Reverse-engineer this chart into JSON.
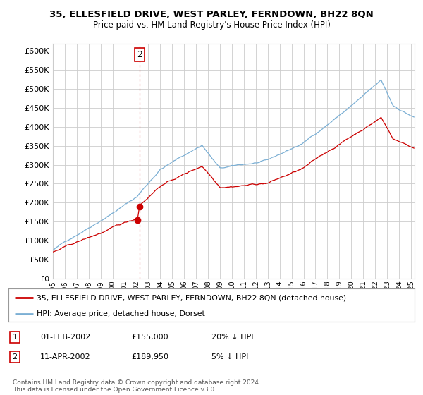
{
  "title": "35, ELLESFIELD DRIVE, WEST PARLEY, FERNDOWN, BH22 8QN",
  "subtitle": "Price paid vs. HM Land Registry's House Price Index (HPI)",
  "legend_line1": "35, ELLESFIELD DRIVE, WEST PARLEY, FERNDOWN, BH22 8QN (detached house)",
  "legend_line2": "HPI: Average price, detached house, Dorset",
  "footnote": "Contains HM Land Registry data © Crown copyright and database right 2024.\nThis data is licensed under the Open Government Licence v3.0.",
  "table_rows": [
    {
      "num": "1",
      "date": "01-FEB-2002",
      "price": "£155,000",
      "hpi": "20% ↓ HPI"
    },
    {
      "num": "2",
      "date": "11-APR-2002",
      "price": "£189,950",
      "hpi": "5% ↓ HPI"
    }
  ],
  "transaction1_x": 2002.083,
  "transaction1_y": 155000,
  "transaction2_x": 2002.28,
  "transaction2_y": 189950,
  "hpi_color": "#7bafd4",
  "price_color": "#cc0000",
  "vline_color": "#cc0000",
  "background_color": "#ffffff",
  "grid_color": "#cccccc",
  "ylim": [
    0,
    620000
  ],
  "xlim": [
    1995.0,
    2025.3
  ],
  "ytick_step": 50000,
  "annotation_box_color": "#cc0000"
}
